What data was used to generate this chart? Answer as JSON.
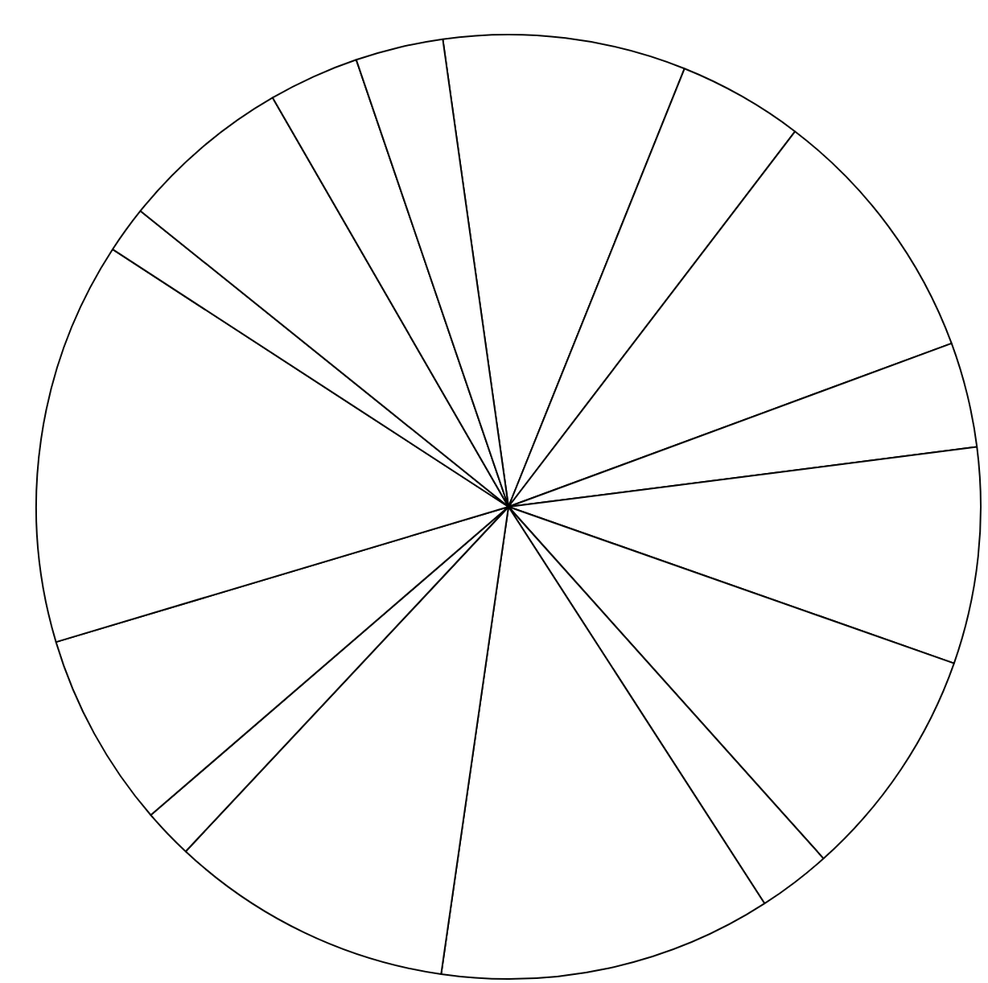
{
  "chart_data": {
    "type": "pie",
    "categories": [
      null,
      null,
      null,
      null,
      null,
      null,
      null,
      null,
      null,
      null,
      null,
      null,
      null,
      null,
      null,
      null
    ],
    "values": [
      8.3,
      4.3,
      9.0,
      3.6,
      7.4,
      8.0,
      2.5,
      11.4,
      9.7,
      1.7,
      6.7,
      13.8,
      1.6,
      5.9,
      3.1,
      3.0
    ],
    "colors": [
      "#ffffff",
      "#ffffff",
      "#ffffff",
      "#ffffff",
      "#ffffff",
      "#ffffff",
      "#ffffff",
      "#ffffff",
      "#ffffff",
      "#ffffff",
      "#ffffff",
      "#ffffff",
      "#ffffff",
      "#ffffff",
      "#ffffff",
      "#ffffff"
    ],
    "legend": false
  }
}
